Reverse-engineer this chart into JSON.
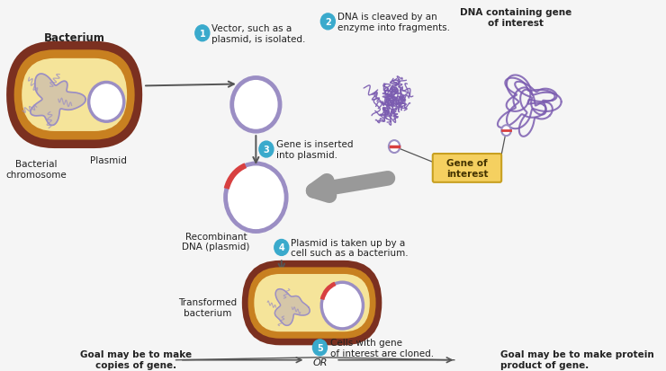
{
  "bg_color": "#f5f5f5",
  "bacterium_outer_color": "#7B3020",
  "bacterium_inner_color": "#F5E49A",
  "bacterium_ring_color": "#C88020",
  "chromosome_color": "#9B8EC4",
  "plasmid_color": "#9B8EC4",
  "dna_fragment_color": "#7B5CB0",
  "gene_box_color": "#F5D060",
  "gene_box_edge": "#C8A020",
  "step_circle_color": "#3AAACC",
  "step_text_color": "#ffffff",
  "arrow_color": "#555555",
  "gray_arrow_color": "#999999",
  "recomb_red": "#D84040",
  "label_color": "#222222",
  "title_bacterium": "Bacterium",
  "label_chromosome": "Bacterial\nchromosome",
  "label_plasmid": "Plasmid",
  "step1_text": "Vector, such as a\nplasmid, is isolated.",
  "step2_text": "DNA is cleaved by an\nenzyme into fragments.",
  "step3_text": "Gene is inserted\ninto plasmid.",
  "step4_text": "Plasmid is taken up by a\ncell such as a bacterium.",
  "step5_text": "Cells with gene\nof interest are cloned.",
  "label_recombinant": "Recombinant\nDNA (plasmid)",
  "label_dna_containing": "DNA containing gene\nof interest",
  "label_gene_interest": "Gene of\ninterest",
  "label_transformed": "Transformed\nbacterium",
  "label_goal_copies": "Goal may be to make\ncopies of gene.",
  "label_goal_protein": "Goal may be to make protein\nproduct of gene.",
  "label_or": "OR"
}
